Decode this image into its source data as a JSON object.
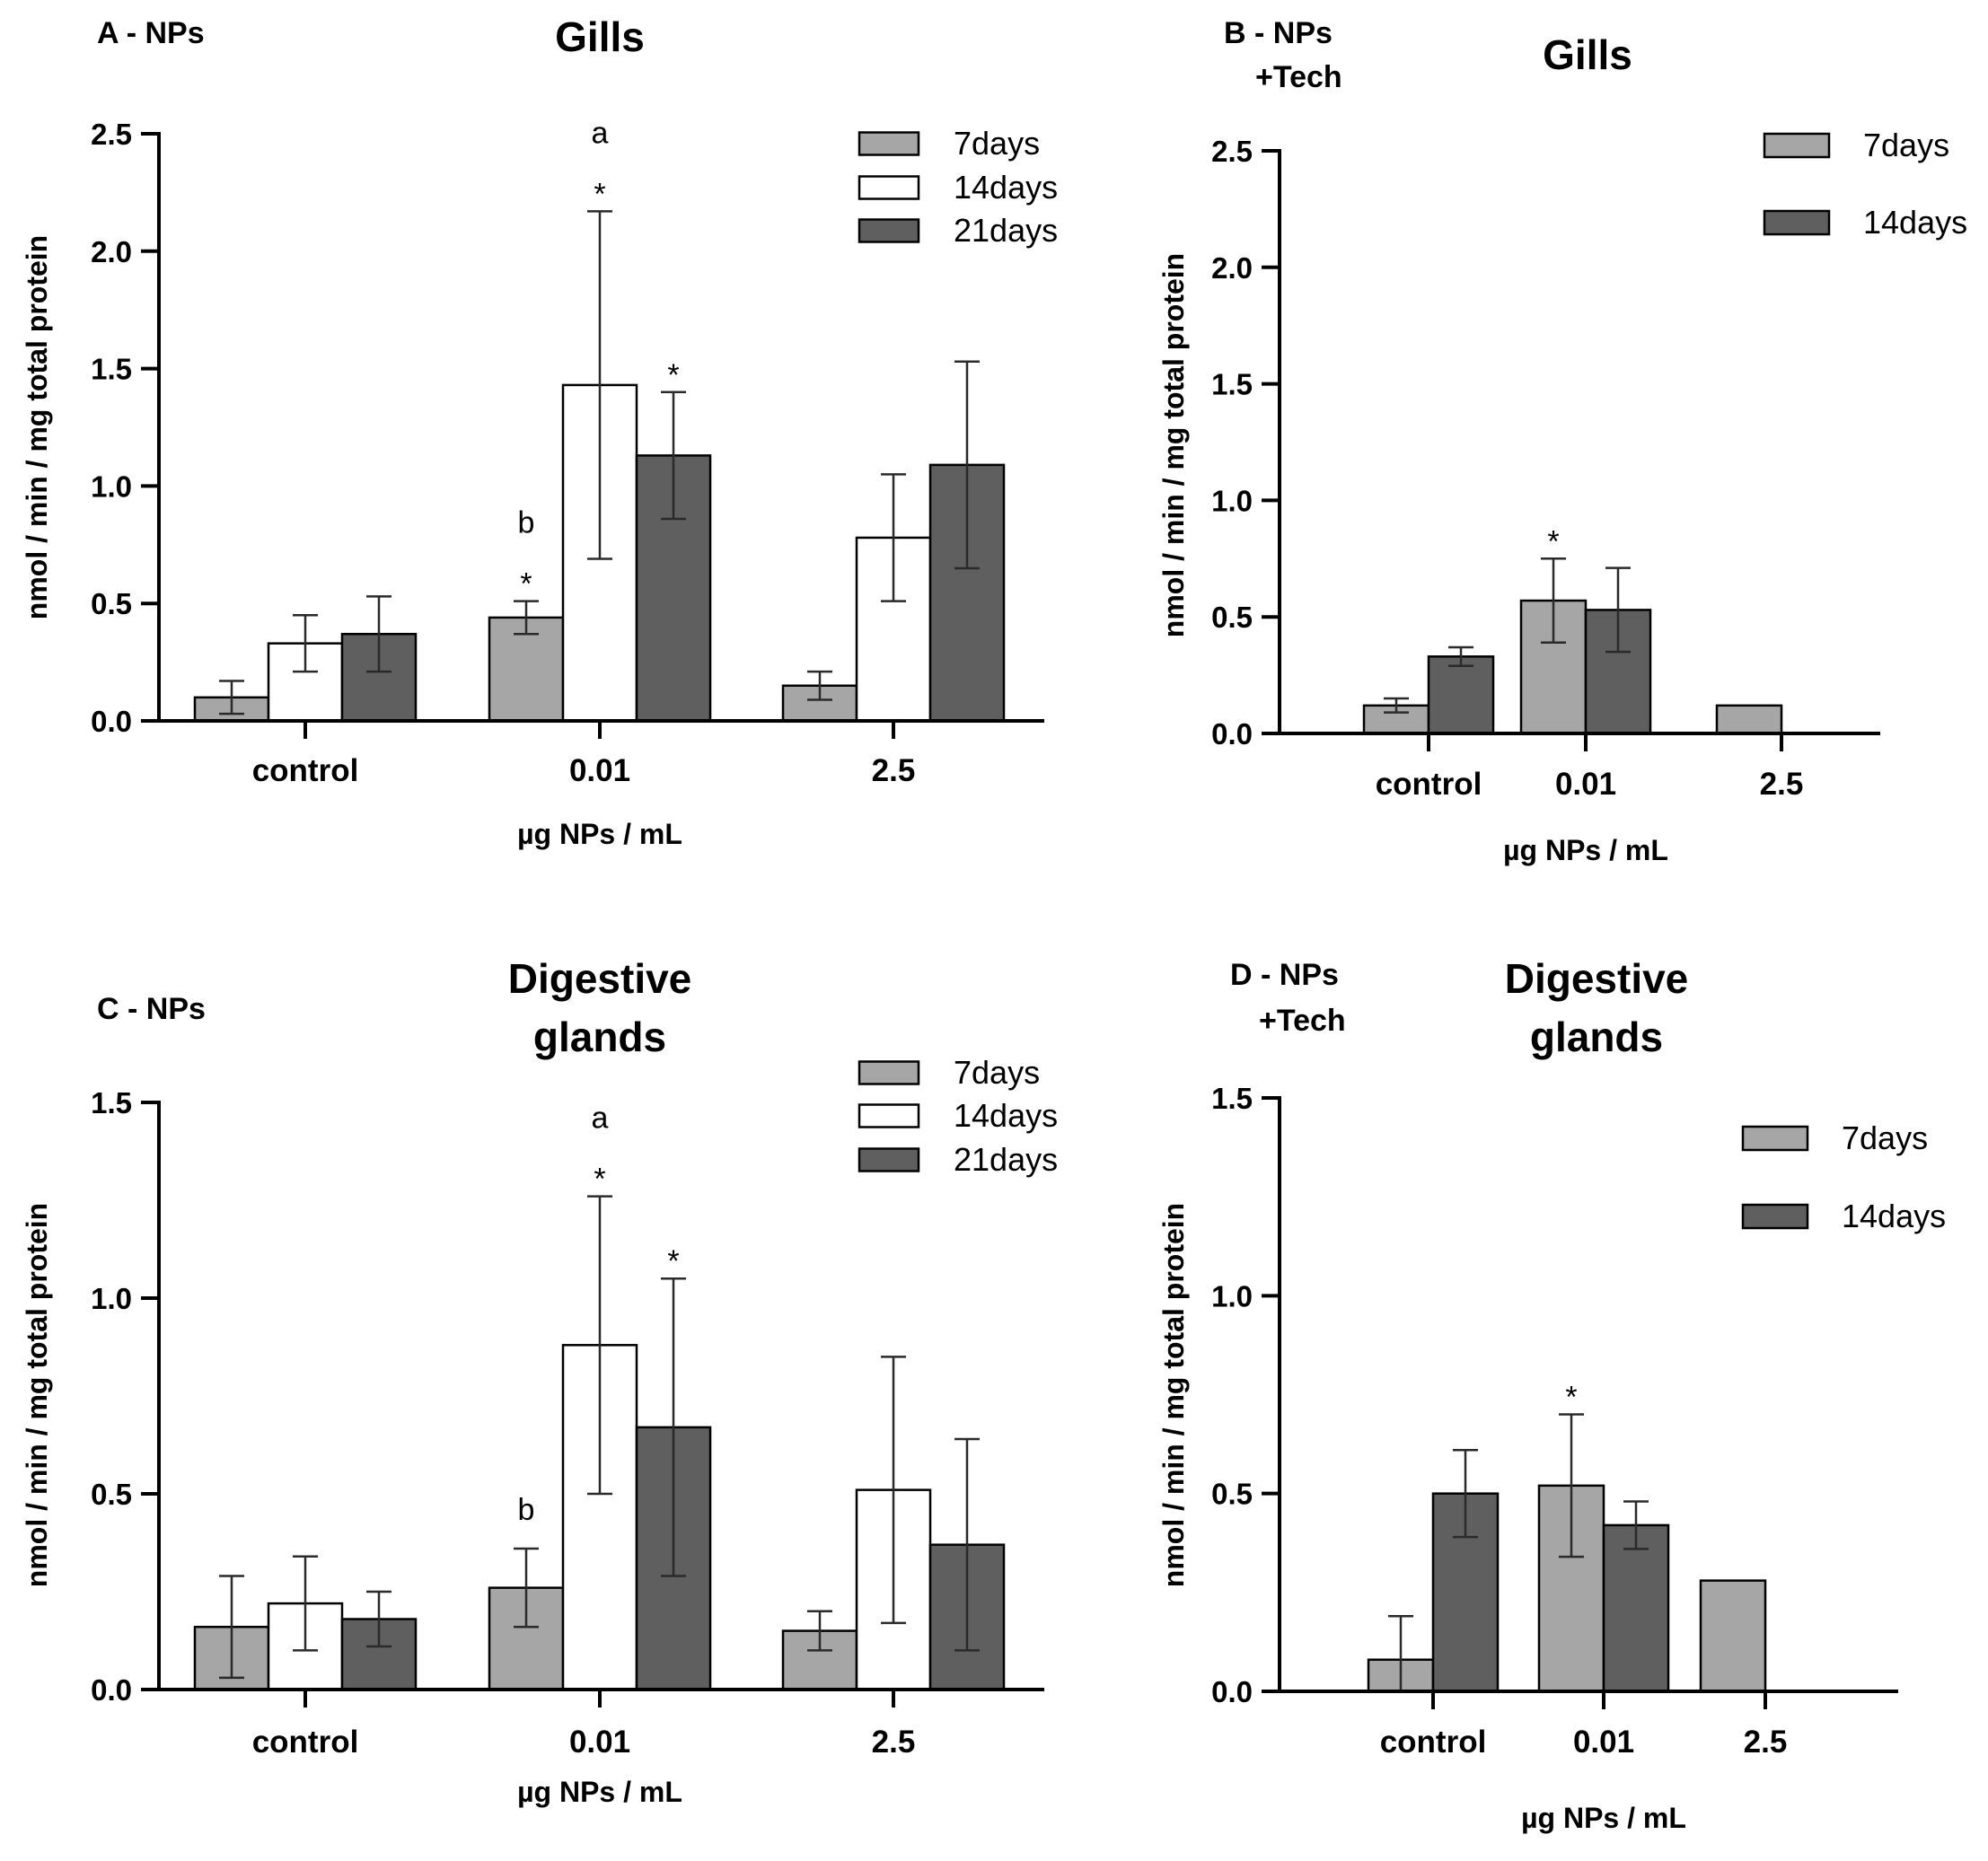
{
  "colors": {
    "7days": "#a6a6a6",
    "14days": "#ffffff",
    "21days": "#5f5f5f",
    "14days_dark": "#5f5f5f"
  },
  "chart_data": [
    {
      "id": "A",
      "type": "bar",
      "label": "A - NPs",
      "title": "Gills",
      "xlabel": "µg NPs / mL",
      "ylabel": "nmol / min / mg total protein",
      "ylim": [
        0,
        2.5
      ],
      "yticks": [
        "0.0",
        "0.5",
        "1.0",
        "1.5",
        "2.0",
        "2.5"
      ],
      "categories": [
        "control",
        "0.01",
        "2.5"
      ],
      "legend_position": "top-right",
      "series": [
        {
          "name": "7days",
          "color": "#a6a6a6",
          "values": [
            0.1,
            0.44,
            0.15
          ],
          "errors": [
            0.07,
            0.07,
            0.06
          ]
        },
        {
          "name": "14days",
          "color": "#ffffff",
          "values": [
            0.33,
            1.43,
            0.78
          ],
          "errors": [
            0.12,
            0.74,
            0.27
          ]
        },
        {
          "name": "21days",
          "color": "#5f5f5f",
          "values": [
            0.37,
            1.13,
            1.09
          ],
          "errors": [
            0.16,
            0.27,
            0.44
          ]
        }
      ],
      "annotations": [
        {
          "category": 1,
          "series": 0,
          "text": "b\n*"
        },
        {
          "category": 1,
          "series": 1,
          "text": "a\n*"
        },
        {
          "category": 1,
          "series": 2,
          "text": "*"
        }
      ]
    },
    {
      "id": "B",
      "type": "bar",
      "label": "B - NPs +Tech",
      "title": "Gills",
      "xlabel": "µg NPs / mL",
      "ylabel": "nmol / min / mg total protein",
      "ylim": [
        0,
        2.5
      ],
      "yticks": [
        "0.0",
        "0.5",
        "1.0",
        "1.5",
        "2.0",
        "2.5"
      ],
      "categories": [
        "control",
        "0.01",
        "2.5"
      ],
      "legend_position": "top-right",
      "series": [
        {
          "name": "7days",
          "color": "#a6a6a6",
          "values": [
            0.12,
            0.57,
            0.12
          ],
          "errors": [
            0.03,
            0.18,
            null
          ]
        },
        {
          "name": "14days",
          "color": "#5f5f5f",
          "values": [
            0.33,
            0.53,
            null
          ],
          "errors": [
            0.04,
            0.18,
            null
          ]
        }
      ],
      "annotations": [
        {
          "category": 1,
          "series": 0,
          "text": "*"
        }
      ]
    },
    {
      "id": "C",
      "type": "bar",
      "label": "C - NPs",
      "title": "Digestive glands",
      "xlabel": "µg NPs / mL",
      "ylabel": "nmol / min / mg total protein",
      "ylim": [
        0,
        1.5
      ],
      "yticks": [
        "0.0",
        "0.5",
        "1.0",
        "1.5"
      ],
      "categories": [
        "control",
        "0.01",
        "2.5"
      ],
      "legend_position": "top-right",
      "series": [
        {
          "name": "7days",
          "color": "#a6a6a6",
          "values": [
            0.16,
            0.26,
            0.15
          ],
          "errors": [
            0.13,
            0.1,
            0.05
          ]
        },
        {
          "name": "14days",
          "color": "#ffffff",
          "values": [
            0.22,
            0.88,
            0.51
          ],
          "errors": [
            0.12,
            0.38,
            0.34
          ]
        },
        {
          "name": "21days",
          "color": "#5f5f5f",
          "values": [
            0.18,
            0.67,
            0.37
          ],
          "errors": [
            0.07,
            0.38,
            0.27
          ]
        }
      ],
      "annotations": [
        {
          "category": 1,
          "series": 0,
          "text": "b"
        },
        {
          "category": 1,
          "series": 1,
          "text": "a\n*"
        },
        {
          "category": 1,
          "series": 2,
          "text": "*"
        }
      ]
    },
    {
      "id": "D",
      "type": "bar",
      "label": "D - NPs +Tech",
      "title": "Digestive glands",
      "xlabel": "µg NPs / mL",
      "ylabel": "nmol / min / mg total protein",
      "ylim": [
        0,
        1.5
      ],
      "yticks": [
        "0.0",
        "0.5",
        "1.0",
        "1.5"
      ],
      "categories": [
        "control",
        "0.01",
        "2.5"
      ],
      "legend_position": "top-right",
      "series": [
        {
          "name": "7days",
          "color": "#a6a6a6",
          "values": [
            0.08,
            0.52,
            0.28
          ],
          "errors": [
            0.11,
            0.18,
            null
          ]
        },
        {
          "name": "14days",
          "color": "#5f5f5f",
          "values": [
            0.5,
            0.42,
            null
          ],
          "errors": [
            0.11,
            0.06,
            null
          ]
        }
      ],
      "annotations": [
        {
          "category": 1,
          "series": 0,
          "text": "*"
        }
      ]
    }
  ]
}
